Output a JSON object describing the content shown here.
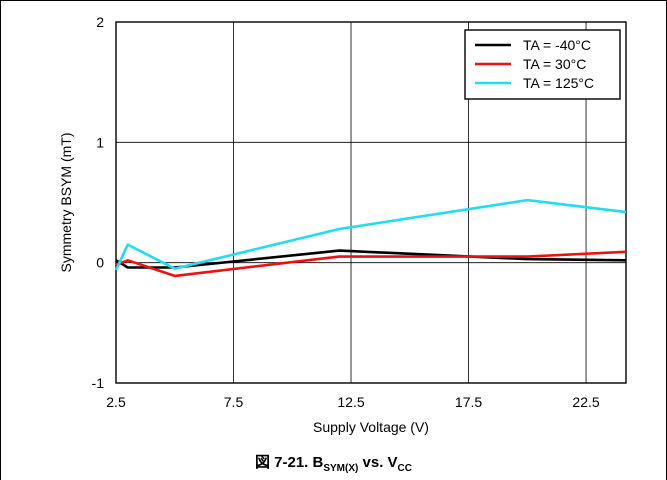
{
  "chart_data": {
    "type": "line",
    "title": "",
    "xlabel": "Supply Voltage (V)",
    "ylabel": "Symmetry BSYM (mT)",
    "xlim": [
      2.5,
      24.2
    ],
    "ylim": [
      -1,
      2
    ],
    "xticks": [
      "2.5",
      "7.5",
      "12.5",
      "17.5",
      "22.5"
    ],
    "xtick_values": [
      2.5,
      7.5,
      12.5,
      17.5,
      22.5
    ],
    "yticks": [
      "2",
      "1",
      "0",
      "-1"
    ],
    "ytick_values": [
      2,
      1,
      0,
      -1
    ],
    "grid": true,
    "legend_position": "top-right",
    "series": [
      {
        "name": "TA = -40°C",
        "color": "#000000",
        "x": [
          2.5,
          3,
          5,
          12,
          20,
          24.2
        ],
        "y": [
          0.02,
          -0.04,
          -0.04,
          0.1,
          0.03,
          0.02
        ]
      },
      {
        "name": "TA = 30°C",
        "color": "#ee1111",
        "x": [
          2.5,
          3,
          5,
          12,
          20,
          24.2
        ],
        "y": [
          -0.02,
          0.02,
          -0.11,
          0.05,
          0.05,
          0.09
        ]
      },
      {
        "name": "TA = 125°C",
        "color": "#22ddee",
        "x": [
          2.5,
          3,
          5,
          12,
          20,
          24.2
        ],
        "y": [
          -0.06,
          0.15,
          -0.05,
          0.28,
          0.52,
          0.42
        ]
      }
    ]
  },
  "caption": {
    "fig": "図 7-21. B",
    "sub1": "SYM(X)",
    "mid": " vs. V",
    "sub2": "CC"
  }
}
